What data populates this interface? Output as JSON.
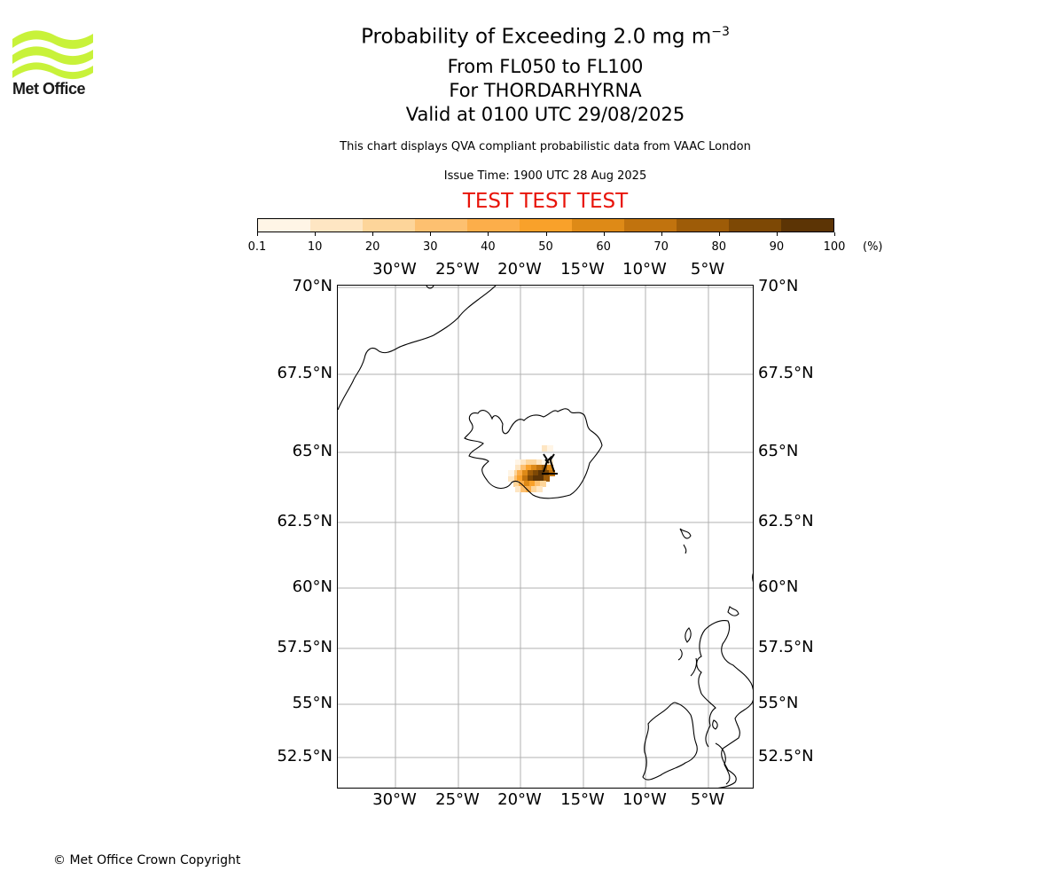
{
  "header": {
    "title_main": "Probability of Exceeding 2.0 mg m",
    "title_sup": "−3",
    "line2": "From FL050 to FL100",
    "line3": "For THORDARHYRNA",
    "line4": "Valid at 0100 UTC 29/08/2025",
    "note": "This chart displays QVA compliant probabilistic data from VAAC London",
    "issue": "Issue Time: 1900 UTC 28 Aug 2025",
    "test_banner": "TEST TEST TEST"
  },
  "logo": {
    "text": "Met Office",
    "color": "#c8f23a"
  },
  "colorbar": {
    "ticks": [
      "0.1",
      "10",
      "20",
      "30",
      "40",
      "50",
      "60",
      "70",
      "80",
      "90",
      "100"
    ],
    "unit": "(%)",
    "colors": [
      "#fff5e6",
      "#fee6c3",
      "#fdd59a",
      "#fdc070",
      "#fcae4a",
      "#f9a12a",
      "#de8a17",
      "#c1730e",
      "#9e5c08",
      "#7d4805",
      "#5c3405"
    ]
  },
  "map": {
    "lon_ticks": [
      "30°W",
      "25°W",
      "20°W",
      "15°W",
      "10°W",
      "5°W"
    ],
    "lat_ticks": [
      "70°N",
      "67.5°N",
      "65°N",
      "62.5°N",
      "60°N",
      "57.5°N",
      "55°N",
      "52.5°N"
    ],
    "volcano_icon": "volcano-icon"
  },
  "footer": {
    "copyright": "© Met Office Crown Copyright"
  }
}
